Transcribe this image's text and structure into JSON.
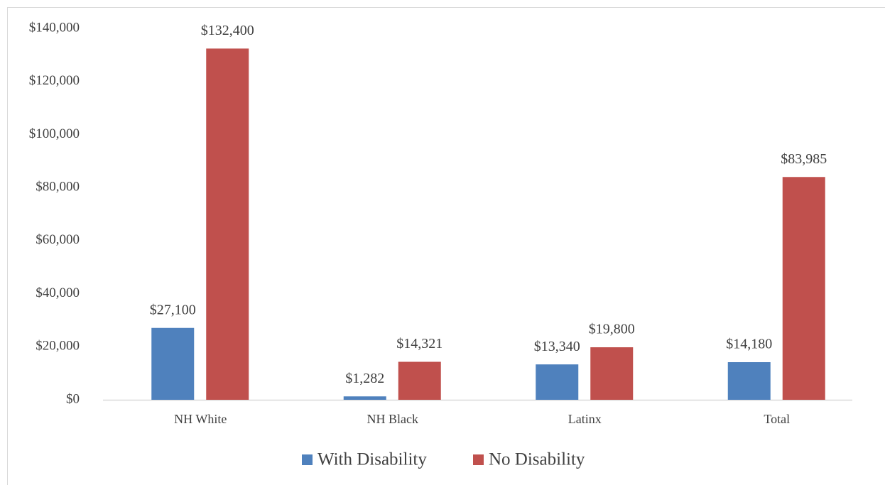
{
  "chart_data": {
    "type": "bar",
    "categories": [
      "NH White",
      "NH Black",
      "Latinx",
      "Total"
    ],
    "series": [
      {
        "name": "With Disability",
        "color": "#4f81bd",
        "values": [
          27100,
          1282,
          13340,
          14180
        ],
        "value_labels": [
          "$27,100",
          "$1,282",
          "$13,340",
          "$14,180"
        ]
      },
      {
        "name": "No Disability",
        "color": "#c0504d",
        "values": [
          132400,
          14321,
          19800,
          83985
        ],
        "value_labels": [
          "$132,400",
          "$14,321",
          "$19,800",
          "$83,985"
        ]
      }
    ],
    "ylim": [
      0,
      140000
    ],
    "yticks": [
      {
        "value": 0,
        "label": "$0"
      },
      {
        "value": 20000,
        "label": "$20,000"
      },
      {
        "value": 40000,
        "label": "$40,000"
      },
      {
        "value": 60000,
        "label": "$60,000"
      },
      {
        "value": 80000,
        "label": "$80,000"
      },
      {
        "value": 100000,
        "label": "$100,000"
      },
      {
        "value": 120000,
        "label": "$120,000"
      },
      {
        "value": 140000,
        "label": "$140,000"
      }
    ],
    "grid": false,
    "legend": "bottom"
  }
}
